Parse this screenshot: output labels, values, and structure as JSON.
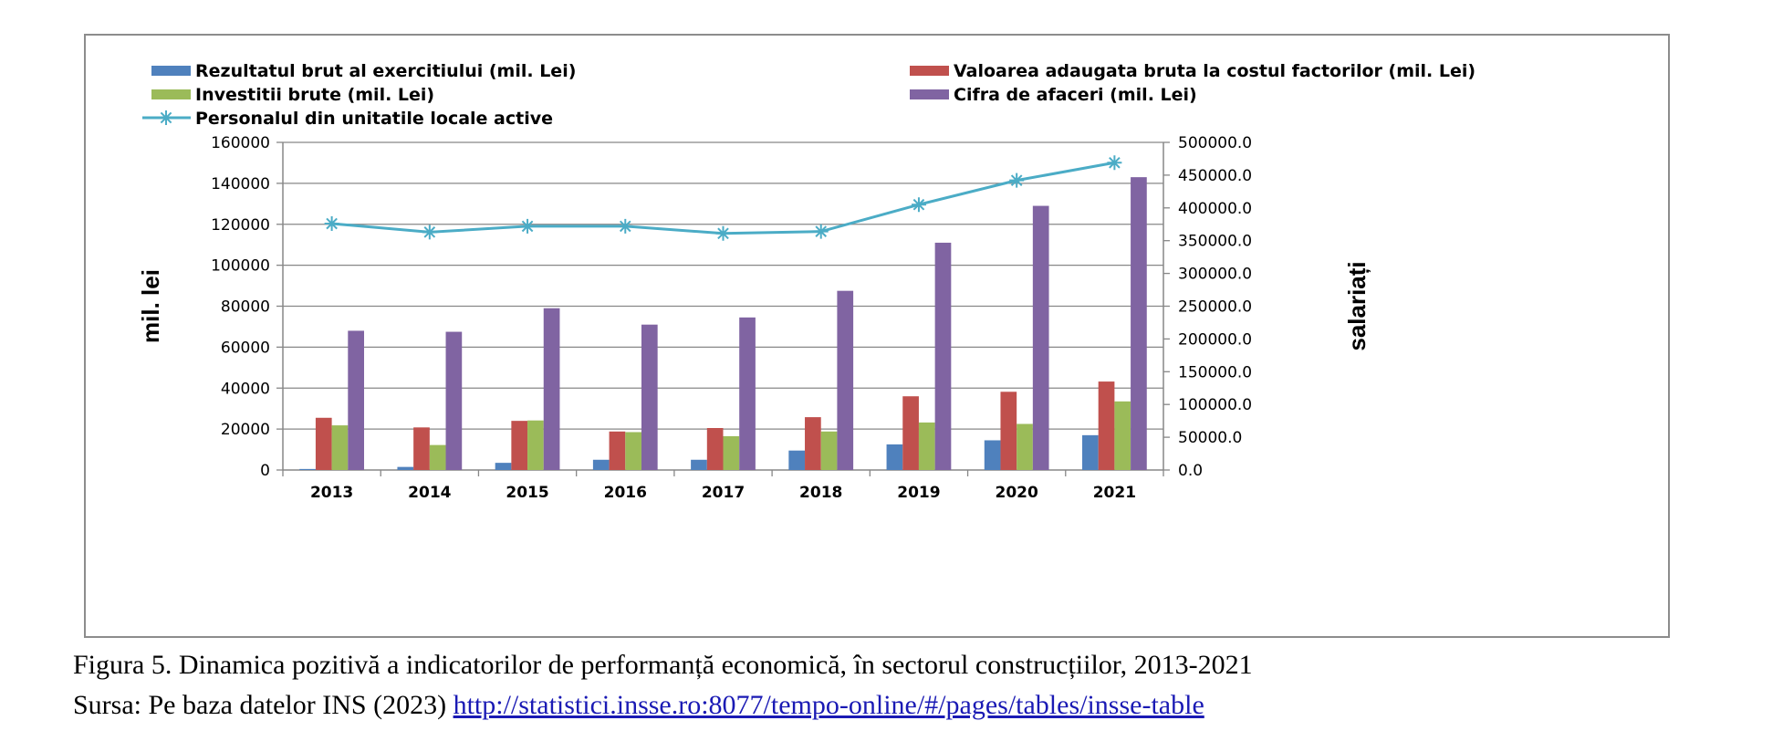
{
  "chart_data": {
    "type": "bar",
    "categories": [
      "2013",
      "2014",
      "2015",
      "2016",
      "2017",
      "2018",
      "2019",
      "2020",
      "2021"
    ],
    "series": [
      {
        "name": "Rezultatul brut al exercitiului (mil. Lei)",
        "kind": "bar",
        "axis": "left",
        "color": "#4f81bd",
        "values": [
          500,
          1500,
          3500,
          5000,
          5000,
          9500,
          12500,
          14500,
          17000
        ]
      },
      {
        "name": "Valoarea adaugata bruta la costul factorilor  (mil. Lei)",
        "kind": "bar",
        "axis": "left",
        "color": "#c0504d",
        "values": [
          25500,
          20800,
          24000,
          18800,
          20500,
          25800,
          36000,
          38200,
          43200
        ]
      },
      {
        "name": "Investitii brute (mil. Lei)",
        "kind": "bar",
        "axis": "left",
        "color": "#9bbb59",
        "values": [
          21800,
          12200,
          24200,
          18500,
          16500,
          18800,
          23200,
          22500,
          33500
        ]
      },
      {
        "name": "Cifra de afaceri (mil. Lei)",
        "kind": "bar",
        "axis": "left",
        "color": "#8064a2",
        "values": [
          68000,
          67500,
          79000,
          71000,
          74500,
          87500,
          111000,
          129000,
          143000
        ]
      },
      {
        "name": "Personalul din unitatile locale active",
        "kind": "line",
        "axis": "right",
        "color": "#4bacc6",
        "marker": "asterisk",
        "values": [
          376000,
          363000,
          372000,
          372000,
          361000,
          364000,
          405000,
          442000,
          469000
        ]
      }
    ],
    "ylabel": "mil. lei",
    "y2label": "salariați",
    "ylim": [
      0,
      160000
    ],
    "y2lim": [
      0,
      500000
    ],
    "yticks": [
      "0",
      "20000",
      "40000",
      "60000",
      "80000",
      "100000",
      "120000",
      "140000",
      "160000"
    ],
    "y2ticks": [
      "0.0",
      "50000.0",
      "100000.0",
      "150000.0",
      "200000.0",
      "250000.0",
      "300000.0",
      "350000.0",
      "400000.0",
      "450000.0",
      "500000.0"
    ],
    "grid": true,
    "legend_position": "top"
  },
  "caption": {
    "line1": "Figura 5. Dinamica pozitivă a indicatorilor de performanță economică, în sectorul construcțiilor, 2013-2021",
    "line2_prefix": "Sursa: Pe baza datelor INS (2023) ",
    "line2_link": "http://statistici.insse.ro:8077/tempo-online/#/pages/tables/insse-table"
  }
}
